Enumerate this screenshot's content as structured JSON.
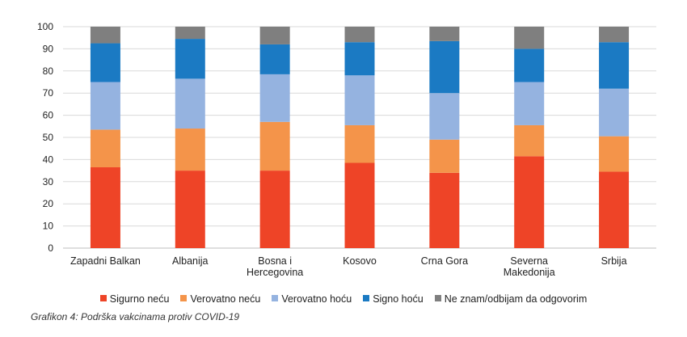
{
  "chart_data": {
    "type": "bar",
    "stacked": true,
    "categories": [
      [
        "Zapadni Balkan"
      ],
      [
        "Albanija"
      ],
      [
        "Bosna i",
        "Hercegovina"
      ],
      [
        "Kosovo"
      ],
      [
        "Crna Gora"
      ],
      [
        "Severna",
        "Makedonija"
      ],
      [
        "Srbija"
      ]
    ],
    "series": [
      {
        "name": "Sigurno neću",
        "color": "#ee4427",
        "values": [
          36.5,
          35,
          35,
          38.5,
          34,
          41.5,
          34.5
        ]
      },
      {
        "name": "Verovatno neću",
        "color": "#f4944a",
        "values": [
          17,
          19,
          22,
          17,
          15,
          14,
          16
        ]
      },
      {
        "name": "Verovatno hoću",
        "color": "#95b3e0",
        "values": [
          21.5,
          22.5,
          21.5,
          22.5,
          21,
          19.5,
          21.5
        ]
      },
      {
        "name": "Signo hoću",
        "color": "#1b7ac3",
        "values": [
          17.5,
          18,
          13.5,
          15,
          23.5,
          15,
          21
        ]
      },
      {
        "name": "Ne znam/odbijam da odgovorim",
        "color": "#7f7f7f",
        "values": [
          7.5,
          5.5,
          8,
          7,
          6.5,
          10,
          7
        ]
      }
    ],
    "ylim": [
      0,
      100
    ],
    "yticks": [
      "0",
      "10",
      "20",
      "30",
      "40",
      "50",
      "60",
      "70",
      "80",
      "90",
      "100"
    ],
    "grid": true,
    "legend_position": "bottom"
  },
  "caption": "Grafikon 4: Podrška vakcinama protiv COVID-19"
}
